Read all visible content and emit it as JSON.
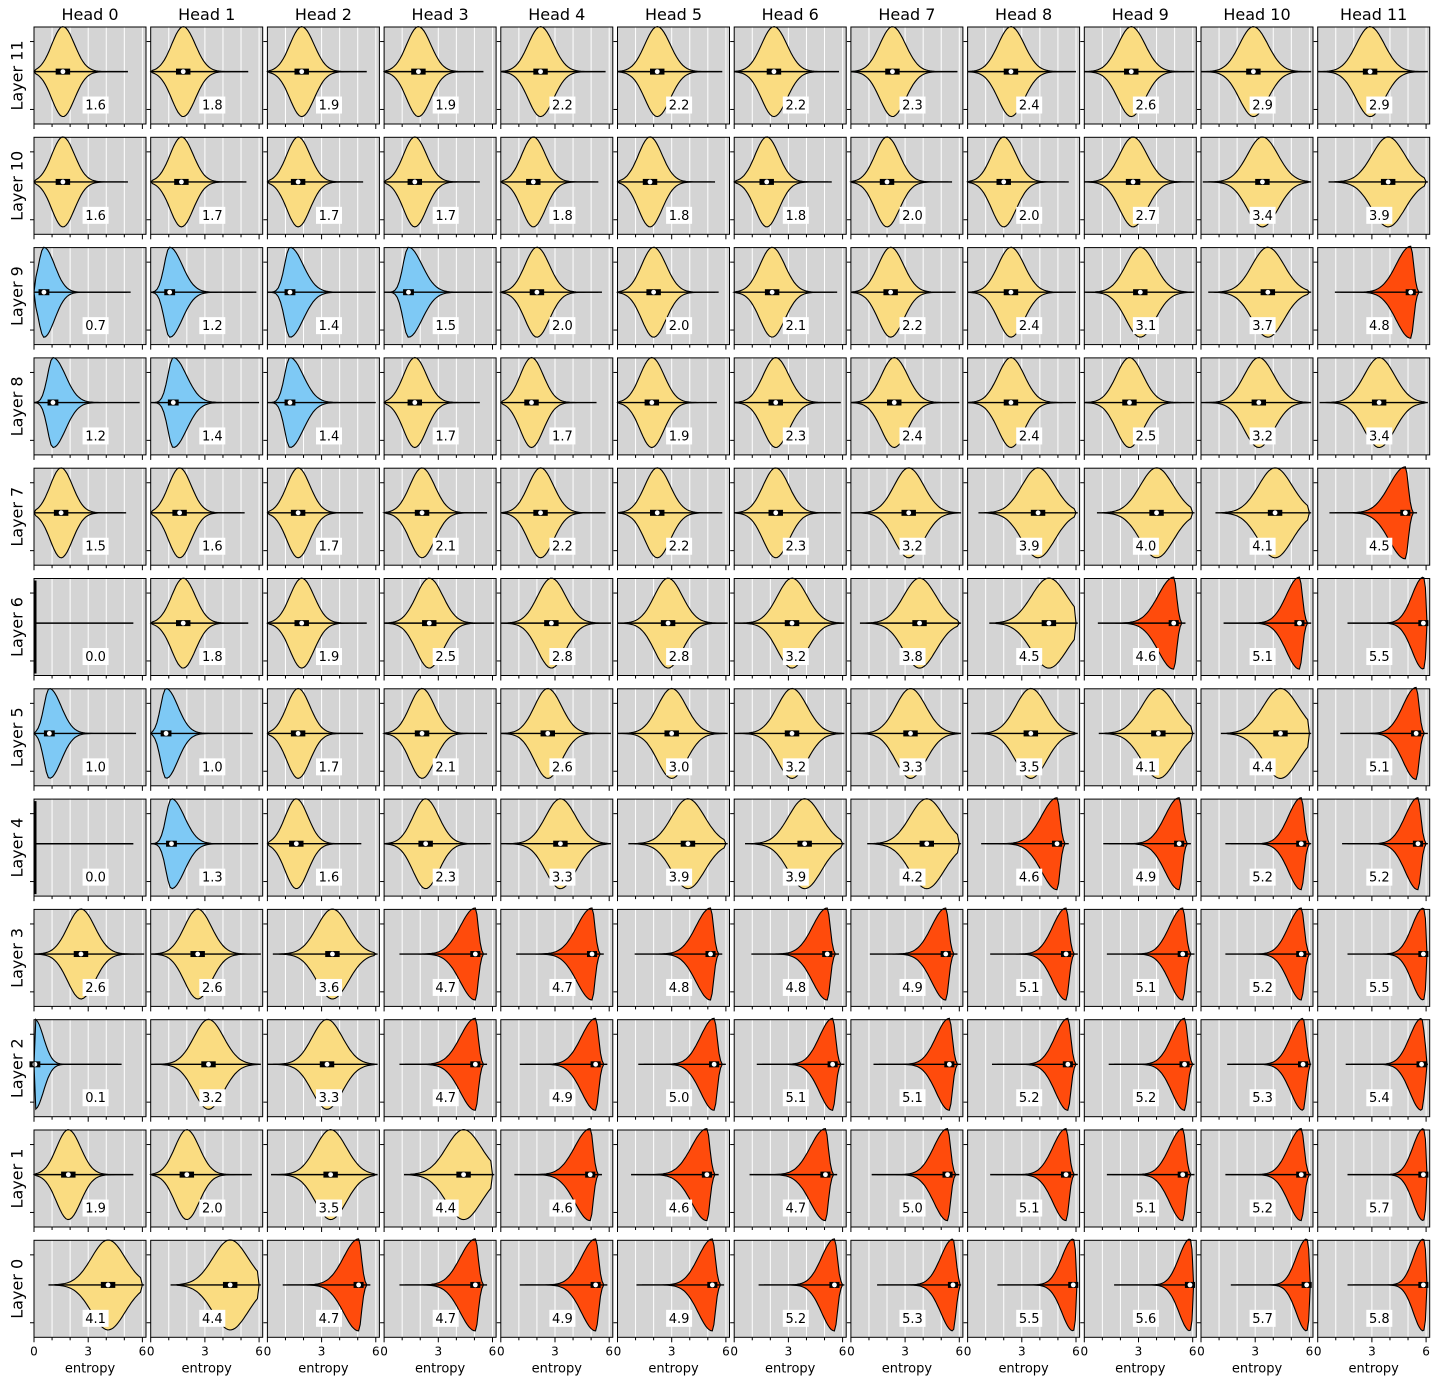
{
  "chart_data": {
    "type": "violin",
    "layout": {
      "rows": "Layer 11 (top) to Layer 0 (bottom)",
      "columns": "Head 0 to Head 11"
    },
    "col_titles": [
      "Head 0",
      "Head 1",
      "Head 2",
      "Head 3",
      "Head 4",
      "Head 5",
      "Head 6",
      "Head 7",
      "Head 8",
      "Head 9",
      "Head 10",
      "Head 11"
    ],
    "row_labels": [
      "Layer 11",
      "Layer 10",
      "Layer 9",
      "Layer 8",
      "Layer 7",
      "Layer 6",
      "Layer 5",
      "Layer 4",
      "Layer 3",
      "Layer 2",
      "Layer 1",
      "Layer 0"
    ],
    "xlabel": "entropy",
    "xlim": [
      0,
      6.2
    ],
    "xticks": [
      0,
      3,
      6
    ],
    "xtick_labels": [
      "0",
      "3",
      "6"
    ],
    "grid": "vertical lines",
    "colors": {
      "low": "#7ec9f5",
      "mid": "#fadc81",
      "high": "#ff4b0c",
      "panel": "#d4d4d4",
      "edge": "#000000"
    },
    "mean_values": [
      [
        "1.6",
        "1.8",
        "1.9",
        "1.9",
        "2.2",
        "2.2",
        "2.2",
        "2.3",
        "2.4",
        "2.6",
        "2.9",
        "2.9"
      ],
      [
        "1.6",
        "1.7",
        "1.7",
        "1.7",
        "1.8",
        "1.8",
        "1.8",
        "2.0",
        "2.0",
        "2.7",
        "3.4",
        "3.9"
      ],
      [
        "0.7",
        "1.2",
        "1.4",
        "1.5",
        "2.0",
        "2.0",
        "2.1",
        "2.2",
        "2.4",
        "3.1",
        "3.7",
        "4.8"
      ],
      [
        "1.2",
        "1.4",
        "1.4",
        "1.7",
        "1.7",
        "1.9",
        "2.3",
        "2.4",
        "2.4",
        "2.5",
        "3.2",
        "3.4"
      ],
      [
        "1.5",
        "1.6",
        "1.7",
        "2.1",
        "2.2",
        "2.2",
        "2.3",
        "3.2",
        "3.9",
        "4.0",
        "4.1",
        "4.5"
      ],
      [
        "0.0",
        "1.8",
        "1.9",
        "2.5",
        "2.8",
        "2.8",
        "3.2",
        "3.8",
        "4.5",
        "4.6",
        "5.1",
        "5.5"
      ],
      [
        "1.0",
        "1.0",
        "1.7",
        "2.1",
        "2.6",
        "3.0",
        "3.2",
        "3.3",
        "3.5",
        "4.1",
        "4.4",
        "5.1"
      ],
      [
        "0.0",
        "1.3",
        "1.6",
        "2.3",
        "3.3",
        "3.9",
        "3.9",
        "4.2",
        "4.6",
        "4.9",
        "5.2",
        "5.2"
      ],
      [
        "2.6",
        "2.6",
        "3.6",
        "4.7",
        "4.7",
        "4.8",
        "4.8",
        "4.9",
        "5.1",
        "5.1",
        "5.2",
        "5.5"
      ],
      [
        "0.1",
        "3.2",
        "3.3",
        "4.7",
        "4.9",
        "5.0",
        "5.1",
        "5.1",
        "5.2",
        "5.2",
        "5.3",
        "5.4"
      ],
      [
        "1.9",
        "2.0",
        "3.5",
        "4.4",
        "4.6",
        "4.6",
        "4.7",
        "5.0",
        "5.1",
        "5.1",
        "5.2",
        "5.7"
      ],
      [
        "4.1",
        "4.4",
        "4.7",
        "4.7",
        "4.9",
        "4.9",
        "5.2",
        "5.3",
        "5.5",
        "5.6",
        "5.7",
        "5.8"
      ]
    ],
    "color_class": [
      [
        "mid",
        "mid",
        "mid",
        "mid",
        "mid",
        "mid",
        "mid",
        "mid",
        "mid",
        "mid",
        "mid",
        "mid"
      ],
      [
        "mid",
        "mid",
        "mid",
        "mid",
        "mid",
        "mid",
        "mid",
        "mid",
        "mid",
        "mid",
        "mid",
        "mid"
      ],
      [
        "low",
        "low",
        "low",
        "low",
        "mid",
        "mid",
        "mid",
        "mid",
        "mid",
        "mid",
        "mid",
        "high"
      ],
      [
        "low",
        "low",
        "low",
        "mid",
        "mid",
        "mid",
        "mid",
        "mid",
        "mid",
        "mid",
        "mid",
        "mid"
      ],
      [
        "mid",
        "mid",
        "mid",
        "mid",
        "mid",
        "mid",
        "mid",
        "mid",
        "mid",
        "mid",
        "mid",
        "high"
      ],
      [
        "low",
        "mid",
        "mid",
        "mid",
        "mid",
        "mid",
        "mid",
        "mid",
        "mid",
        "high",
        "high",
        "high"
      ],
      [
        "low",
        "low",
        "mid",
        "mid",
        "mid",
        "mid",
        "mid",
        "mid",
        "mid",
        "mid",
        "mid",
        "high"
      ],
      [
        "low",
        "low",
        "mid",
        "mid",
        "mid",
        "mid",
        "mid",
        "mid",
        "high",
        "high",
        "high",
        "high"
      ],
      [
        "mid",
        "mid",
        "mid",
        "high",
        "high",
        "high",
        "high",
        "high",
        "high",
        "high",
        "high",
        "high"
      ],
      [
        "low",
        "mid",
        "mid",
        "high",
        "high",
        "high",
        "high",
        "high",
        "high",
        "high",
        "high",
        "high"
      ],
      [
        "mid",
        "mid",
        "mid",
        "mid",
        "high",
        "high",
        "high",
        "high",
        "high",
        "high",
        "high",
        "high"
      ],
      [
        "mid",
        "mid",
        "high",
        "high",
        "high",
        "high",
        "high",
        "high",
        "high",
        "high",
        "high",
        "high"
      ]
    ]
  }
}
